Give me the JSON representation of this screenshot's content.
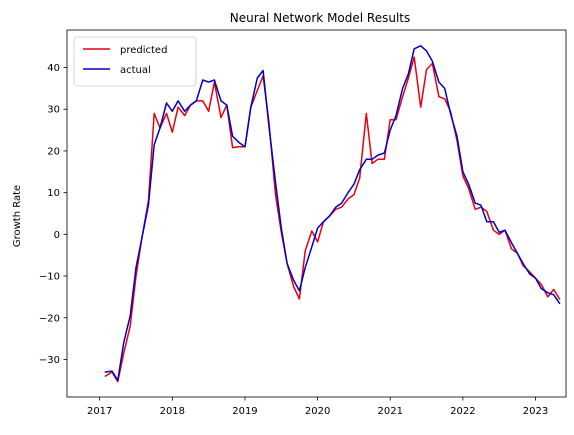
{
  "chart_data": {
    "type": "line",
    "title": "Neural Network Model Results",
    "xlabel": "",
    "ylabel": "Growth Rate",
    "xlim": [
      2016.55,
      2023.42
    ],
    "ylim": [
      -39,
      49
    ],
    "x_ticks": [
      2017,
      2018,
      2019,
      2020,
      2021,
      2022,
      2023
    ],
    "x_tick_labels": [
      "2017",
      "2018",
      "2019",
      "2020",
      "2021",
      "2022",
      "2023"
    ],
    "y_ticks": [
      -30,
      -20,
      -10,
      0,
      10,
      20,
      30,
      40
    ],
    "y_tick_labels": [
      "−30",
      "−20",
      "−10",
      "0",
      "10",
      "20",
      "30",
      "40"
    ],
    "grid": false,
    "legend_position": "top-left",
    "series": [
      {
        "name": "predicted",
        "color": "#e8000b",
        "points": [
          [
            2017.08,
            -34.0
          ],
          [
            2017.17,
            -33.0
          ],
          [
            2017.25,
            -35.3
          ],
          [
            2017.33,
            -28.5
          ],
          [
            2017.42,
            -22.0
          ],
          [
            2017.5,
            -10.0
          ],
          [
            2017.58,
            -1.0
          ],
          [
            2017.67,
            8.0
          ],
          [
            2017.75,
            29.0
          ],
          [
            2017.83,
            25.5
          ],
          [
            2017.92,
            29.0
          ],
          [
            2018.0,
            24.5
          ],
          [
            2018.08,
            30.5
          ],
          [
            2018.17,
            28.5
          ],
          [
            2018.25,
            31.0
          ],
          [
            2018.33,
            32.0
          ],
          [
            2018.42,
            32.0
          ],
          [
            2018.5,
            29.5
          ],
          [
            2018.58,
            36.5
          ],
          [
            2018.67,
            28.0
          ],
          [
            2018.75,
            31.0
          ],
          [
            2018.83,
            20.8
          ],
          [
            2018.92,
            21.0
          ],
          [
            2019.0,
            21.0
          ],
          [
            2019.08,
            30.5
          ],
          [
            2019.17,
            34.5
          ],
          [
            2019.25,
            38.0
          ],
          [
            2019.33,
            27.0
          ],
          [
            2019.42,
            9.5
          ],
          [
            2019.5,
            0.5
          ],
          [
            2019.58,
            -7.0
          ],
          [
            2019.67,
            -12.5
          ],
          [
            2019.75,
            -15.5
          ],
          [
            2019.83,
            -4.0
          ],
          [
            2019.92,
            0.8
          ],
          [
            2020.0,
            -1.8
          ],
          [
            2020.08,
            3.0
          ],
          [
            2020.17,
            4.5
          ],
          [
            2020.25,
            6.0
          ],
          [
            2020.33,
            6.5
          ],
          [
            2020.42,
            8.5
          ],
          [
            2020.5,
            9.5
          ],
          [
            2020.58,
            13.5
          ],
          [
            2020.67,
            29.0
          ],
          [
            2020.75,
            17.0
          ],
          [
            2020.83,
            18.0
          ],
          [
            2020.92,
            18.0
          ],
          [
            2021.0,
            27.5
          ],
          [
            2021.08,
            27.5
          ],
          [
            2021.17,
            33.0
          ],
          [
            2021.25,
            37.5
          ],
          [
            2021.33,
            42.5
          ],
          [
            2021.42,
            30.5
          ],
          [
            2021.5,
            39.5
          ],
          [
            2021.58,
            41.0
          ],
          [
            2021.67,
            33.0
          ],
          [
            2021.75,
            32.5
          ],
          [
            2021.83,
            29.5
          ],
          [
            2021.92,
            22.5
          ],
          [
            2022.0,
            14.0
          ],
          [
            2022.08,
            11.0
          ],
          [
            2022.17,
            6.0
          ],
          [
            2022.25,
            6.5
          ],
          [
            2022.33,
            5.5
          ],
          [
            2022.42,
            1.0
          ],
          [
            2022.5,
            0.0
          ],
          [
            2022.58,
            1.0
          ],
          [
            2022.67,
            -3.5
          ],
          [
            2022.75,
            -4.5
          ],
          [
            2022.83,
            -7.5
          ],
          [
            2022.92,
            -9.0
          ],
          [
            2023.0,
            -10.5
          ],
          [
            2023.08,
            -12.0
          ],
          [
            2023.17,
            -15.0
          ],
          [
            2023.25,
            -13.2
          ],
          [
            2023.33,
            -15.5
          ]
        ]
      },
      {
        "name": "actual",
        "color": "#0000c8",
        "points": [
          [
            2017.08,
            -33.0
          ],
          [
            2017.17,
            -32.8
          ],
          [
            2017.25,
            -35.0
          ],
          [
            2017.33,
            -26.0
          ],
          [
            2017.42,
            -19.5
          ],
          [
            2017.5,
            -8.0
          ],
          [
            2017.58,
            -1.0
          ],
          [
            2017.67,
            7.0
          ],
          [
            2017.75,
            21.5
          ],
          [
            2017.83,
            25.5
          ],
          [
            2017.92,
            31.5
          ],
          [
            2018.0,
            29.5
          ],
          [
            2018.08,
            32.0
          ],
          [
            2018.17,
            29.5
          ],
          [
            2018.25,
            31.0
          ],
          [
            2018.33,
            32.0
          ],
          [
            2018.42,
            37.0
          ],
          [
            2018.5,
            36.5
          ],
          [
            2018.58,
            37.0
          ],
          [
            2018.67,
            32.0
          ],
          [
            2018.75,
            31.0
          ],
          [
            2018.83,
            23.5
          ],
          [
            2018.92,
            22.0
          ],
          [
            2019.0,
            21.0
          ],
          [
            2019.08,
            30.5
          ],
          [
            2019.17,
            37.5
          ],
          [
            2019.25,
            39.3
          ],
          [
            2019.33,
            26.0
          ],
          [
            2019.42,
            12.5
          ],
          [
            2019.5,
            1.5
          ],
          [
            2019.58,
            -7.0
          ],
          [
            2019.67,
            -11.0
          ],
          [
            2019.75,
            -13.5
          ],
          [
            2019.83,
            -8.0
          ],
          [
            2019.92,
            -3.0
          ],
          [
            2020.0,
            1.5
          ],
          [
            2020.08,
            3.0
          ],
          [
            2020.17,
            4.5
          ],
          [
            2020.25,
            6.5
          ],
          [
            2020.33,
            7.5
          ],
          [
            2020.42,
            10.0
          ],
          [
            2020.5,
            12.0
          ],
          [
            2020.58,
            15.5
          ],
          [
            2020.67,
            18.0
          ],
          [
            2020.75,
            18.0
          ],
          [
            2020.83,
            19.0
          ],
          [
            2020.92,
            19.5
          ],
          [
            2021.0,
            25.0
          ],
          [
            2021.08,
            28.5
          ],
          [
            2021.17,
            35.0
          ],
          [
            2021.25,
            38.5
          ],
          [
            2021.33,
            44.5
          ],
          [
            2021.42,
            45.2
          ],
          [
            2021.5,
            44.0
          ],
          [
            2021.58,
            41.5
          ],
          [
            2021.67,
            36.5
          ],
          [
            2021.75,
            35.0
          ],
          [
            2021.83,
            29.0
          ],
          [
            2021.92,
            23.5
          ],
          [
            2022.0,
            15.0
          ],
          [
            2022.08,
            12.0
          ],
          [
            2022.17,
            7.5
          ],
          [
            2022.25,
            7.0
          ],
          [
            2022.33,
            3.0
          ],
          [
            2022.42,
            3.0
          ],
          [
            2022.5,
            0.5
          ],
          [
            2022.58,
            1.0
          ],
          [
            2022.67,
            -2.0
          ],
          [
            2022.75,
            -4.5
          ],
          [
            2022.83,
            -7.0
          ],
          [
            2022.92,
            -9.5
          ],
          [
            2023.0,
            -10.5
          ],
          [
            2023.08,
            -13.0
          ],
          [
            2023.17,
            -14.0
          ],
          [
            2023.25,
            -14.5
          ],
          [
            2023.33,
            -16.5
          ]
        ]
      }
    ]
  }
}
